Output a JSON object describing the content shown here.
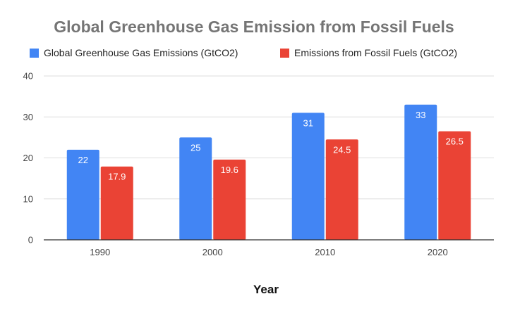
{
  "chart_data": {
    "type": "bar",
    "title": "Global Greenhouse Gas Emission from Fossil Fuels",
    "xlabel": "Year",
    "ylabel": "",
    "categories": [
      "1990",
      "2000",
      "2010",
      "2020"
    ],
    "series": [
      {
        "name": "Global Greenhouse Gas Emissions (GtCO2)",
        "values": [
          22,
          25,
          31,
          33
        ],
        "labels": [
          "22",
          "25",
          "31",
          "33"
        ],
        "color": "#4285f4"
      },
      {
        "name": "Emissions from Fossil Fuels (GtCO2)",
        "values": [
          17.9,
          19.6,
          24.5,
          26.5
        ],
        "labels": [
          "17.9",
          "19.6",
          "24.5",
          "26.5"
        ],
        "color": "#ea4335"
      }
    ],
    "ylim": [
      0,
      40
    ],
    "yticks": [
      0,
      10,
      20,
      30,
      40
    ],
    "ytick_labels": [
      "0",
      "10",
      "20",
      "30",
      "40"
    ],
    "grid": true,
    "legend_position": "top"
  }
}
